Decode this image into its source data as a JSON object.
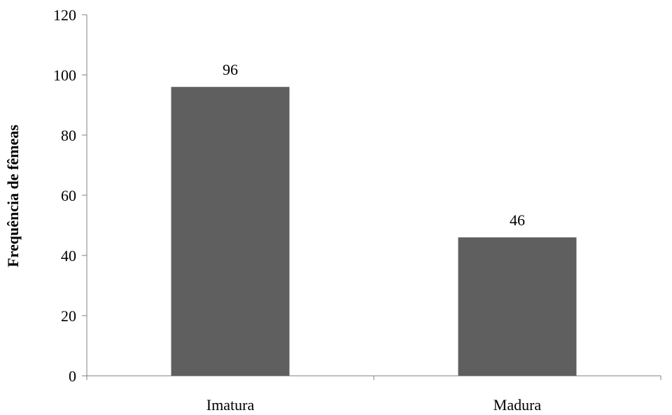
{
  "chart_data": {
    "type": "bar",
    "title": "",
    "xlabel": "",
    "ylabel": "Frequência de fêmeas",
    "categories": [
      "Imatura",
      "Madura"
    ],
    "values": [
      96,
      46
    ],
    "data_labels": [
      "96",
      "46"
    ],
    "ylim": [
      0,
      120
    ],
    "yticks": [
      0,
      20,
      40,
      60,
      80,
      100,
      120
    ],
    "ytick_labels": [
      "0",
      "20",
      "40",
      "60",
      "80",
      "100",
      "120"
    ],
    "grid": false,
    "legend": "none",
    "bar_color": "#5f5f5f",
    "axis_color": "#808080"
  }
}
